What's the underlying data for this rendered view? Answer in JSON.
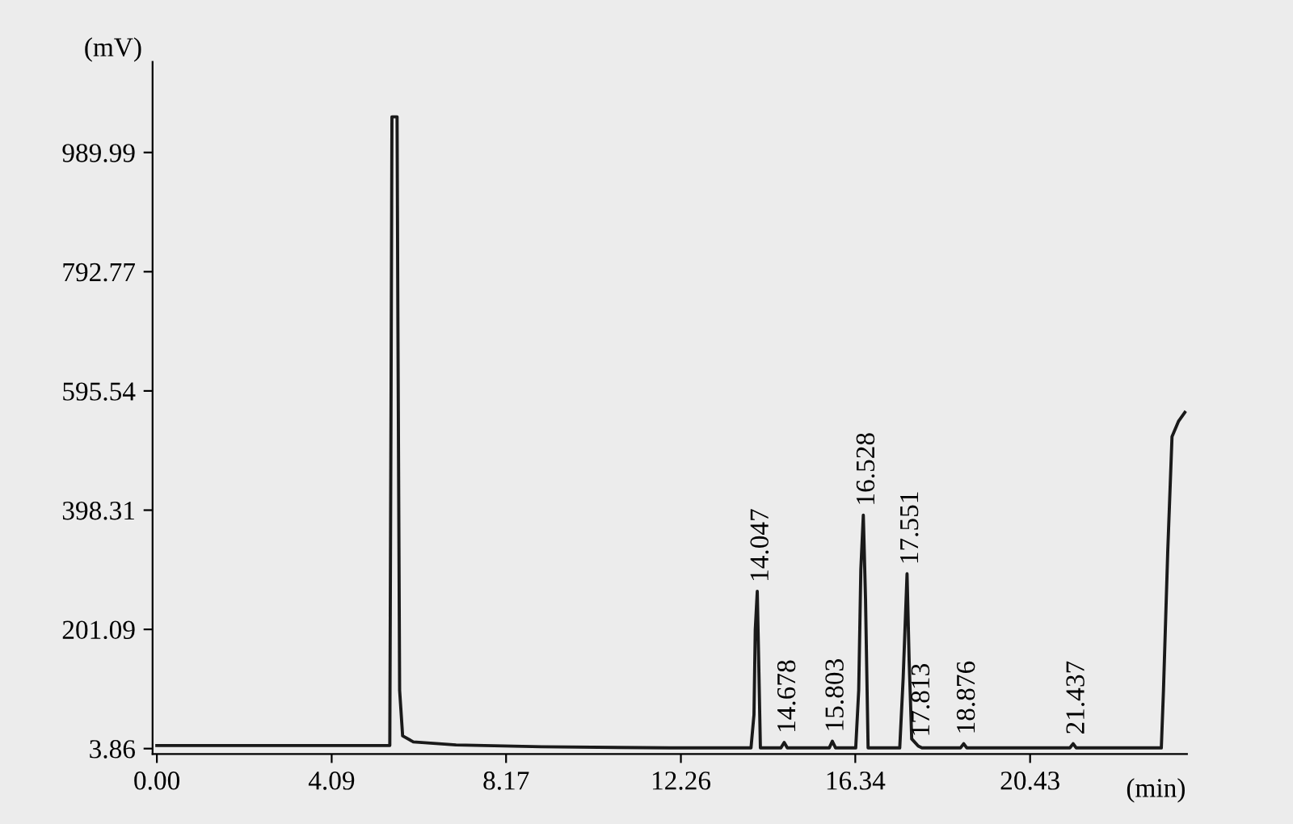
{
  "chart_data": {
    "type": "line",
    "xlabel": "(min)",
    "ylabel": "(mV)",
    "x": [
      0,
      5.45,
      5.48,
      5.5,
      5.62,
      5.64,
      5.68,
      5.75,
      6.0,
      7.0,
      9.0,
      12.0,
      13.9,
      13.97,
      14.0,
      14.047,
      14.08,
      14.12,
      14.6,
      14.678,
      14.75,
      15.73,
      15.803,
      15.88,
      16.35,
      16.42,
      16.47,
      16.528,
      16.58,
      16.64,
      17.38,
      17.46,
      17.551,
      17.6,
      17.66,
      17.813,
      17.9,
      18.8,
      18.876,
      18.95,
      21.36,
      21.437,
      21.51,
      23.5,
      23.55,
      23.65,
      23.75,
      23.9,
      24.05
    ],
    "series": [
      {
        "color": "#1a1a1a",
        "values": [
          9,
          9,
          600,
          1049,
          1049,
          700,
          100,
          25,
          15,
          10,
          7,
          5,
          5,
          60,
          200,
          264,
          150,
          5,
          5,
          14,
          5,
          5,
          16,
          5,
          5,
          100,
          300,
          390,
          250,
          5,
          5,
          120,
          293,
          150,
          20,
          8,
          5,
          5,
          12,
          5,
          5,
          12,
          5,
          5,
          100,
          330,
          520,
          545,
          560
        ]
      }
    ],
    "xlim": [
      -0.1,
      24.1
    ],
    "ylim": [
      -5,
      1140
    ],
    "xticks": [
      {
        "value": 0,
        "label": "0.00"
      },
      {
        "value": 4.09,
        "label": "4.09"
      },
      {
        "value": 8.17,
        "label": "8.17"
      },
      {
        "value": 12.26,
        "label": "12.26"
      },
      {
        "value": 16.34,
        "label": "16.34"
      },
      {
        "value": 20.43,
        "label": "20.43"
      }
    ],
    "yticks": [
      {
        "value": 3.86,
        "label": "3.86"
      },
      {
        "value": 201.09,
        "label": "201.09"
      },
      {
        "value": 398.31,
        "label": "398.31"
      },
      {
        "value": 595.54,
        "label": "595.54"
      },
      {
        "value": 792.77,
        "label": "792.77"
      },
      {
        "value": 989.99,
        "label": "989.99"
      }
    ],
    "annotations": [
      {
        "text": "14.047",
        "x": 14.047,
        "y": 264
      },
      {
        "text": "14.678",
        "x": 14.678,
        "y": 14
      },
      {
        "text": "15.803",
        "x": 15.803,
        "y": 16
      },
      {
        "text": "16.528",
        "x": 16.528,
        "y": 390
      },
      {
        "text": "17.551",
        "x": 17.551,
        "y": 293
      },
      {
        "text": "17.813",
        "x": 17.813,
        "y": 8
      },
      {
        "text": "18.876",
        "x": 18.876,
        "y": 12
      },
      {
        "text": "21.437",
        "x": 21.437,
        "y": 12
      }
    ],
    "grid": false,
    "legend": false,
    "marker": "none",
    "line_style": "solid"
  }
}
